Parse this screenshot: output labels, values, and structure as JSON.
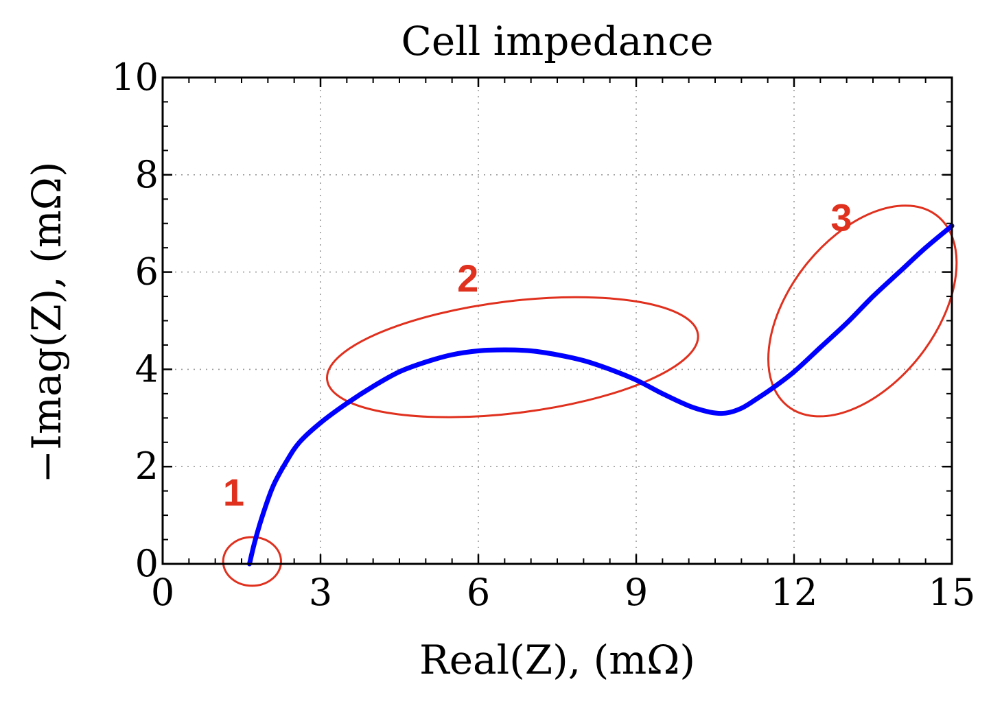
{
  "chart_data": {
    "type": "line",
    "title": "Cell impedance",
    "xlabel": "Real(Z), (mΩ)",
    "ylabel": "−Imag(Z), (mΩ)",
    "xlim": [
      0,
      15
    ],
    "ylim": [
      0,
      10
    ],
    "xticks": [
      0,
      3,
      6,
      9,
      12,
      15
    ],
    "yticks": [
      0,
      2,
      4,
      6,
      8,
      10
    ],
    "grid": true,
    "series": [
      {
        "color": "#0000ff",
        "x": [
          1.65,
          1.75,
          1.9,
          2.1,
          2.35,
          2.6,
          3.0,
          3.5,
          4.0,
          4.5,
          5.0,
          5.5,
          6.0,
          6.5,
          7.0,
          7.5,
          8.0,
          8.5,
          9.0,
          9.5,
          10.0,
          10.4,
          10.7,
          11.0,
          11.3,
          11.6,
          12.0,
          12.5,
          13.0,
          13.5,
          14.0,
          14.5,
          15.0
        ],
        "y": [
          0.0,
          0.45,
          1.0,
          1.6,
          2.1,
          2.5,
          2.9,
          3.3,
          3.65,
          3.95,
          4.15,
          4.3,
          4.38,
          4.4,
          4.38,
          4.3,
          4.18,
          4.0,
          3.78,
          3.5,
          3.25,
          3.12,
          3.1,
          3.2,
          3.4,
          3.62,
          3.95,
          4.45,
          4.95,
          5.5,
          6.0,
          6.5,
          6.95
        ]
      }
    ],
    "annotations": [
      {
        "label": "1",
        "cx": 1.7,
        "cy": 0.05,
        "rx": 0.55,
        "ry": 0.5,
        "angle": 0,
        "label_x": 1.35,
        "label_y": 1.2
      },
      {
        "label": "2",
        "cx": 6.65,
        "cy": 4.25,
        "rx": 3.55,
        "ry": 1.15,
        "angle": -7,
        "label_x": 5.8,
        "label_y": 5.6
      },
      {
        "label": "3",
        "cx": 13.3,
        "cy": 5.2,
        "rx": 2.3,
        "ry": 1.5,
        "angle": -52,
        "label_x": 12.9,
        "label_y": 6.85
      }
    ],
    "annotation_color": "#e0301e"
  }
}
